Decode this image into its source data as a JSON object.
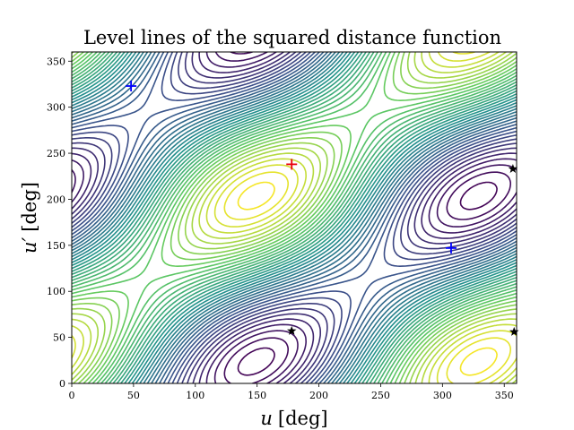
{
  "chart_data": {
    "type": "contour",
    "title": "Level lines of the squared distance function",
    "xlabel": {
      "var": "u",
      "unit": "[deg]"
    },
    "ylabel": {
      "var": "u′",
      "unit": "[deg]"
    },
    "xlim": [
      0,
      360
    ],
    "ylim": [
      0,
      360
    ],
    "xticks": [
      0,
      50,
      100,
      150,
      200,
      250,
      300,
      350
    ],
    "yticks": [
      0,
      50,
      100,
      150,
      200,
      250,
      300,
      350
    ],
    "colormap": "viridis",
    "grid": false,
    "markers": [
      {
        "kind": "max",
        "symbol": "+",
        "color": "#e8000b",
        "x": 178,
        "y": 238
      },
      {
        "kind": "min",
        "symbol": "+",
        "color": "#0000ff",
        "x": 48,
        "y": 323
      },
      {
        "kind": "min",
        "symbol": "+",
        "color": "#0000ff",
        "x": 307,
        "y": 147
      },
      {
        "kind": "saddle",
        "symbol": "star",
        "color": "#000000",
        "x": 178,
        "y": 57
      },
      {
        "kind": "saddle",
        "symbol": "star",
        "color": "#000000",
        "x": 357,
        "y": 233
      },
      {
        "kind": "saddle",
        "symbol": "star",
        "color": "#000000",
        "x": 358,
        "y": 56
      }
    ]
  }
}
